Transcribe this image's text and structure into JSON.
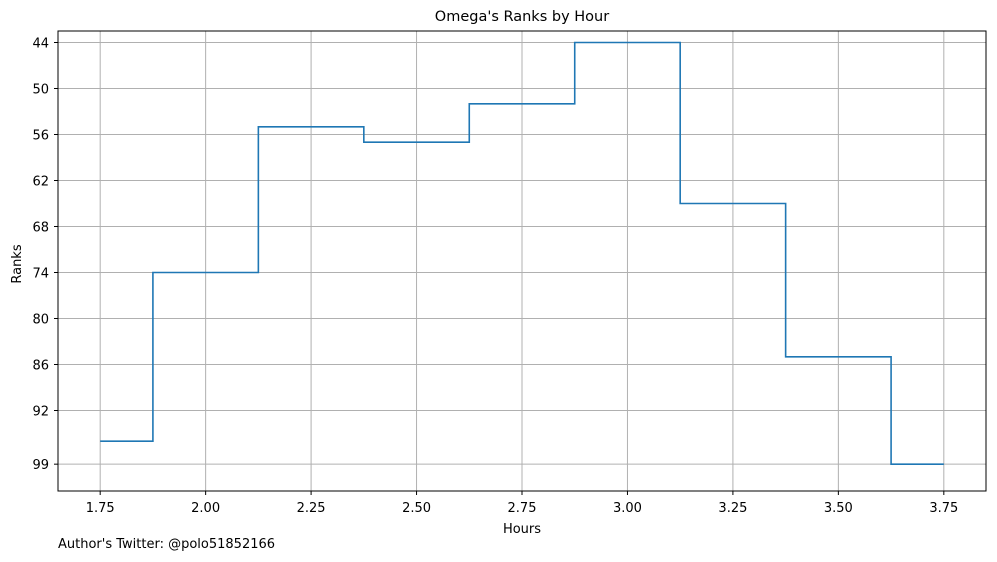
{
  "chart_data": {
    "type": "line",
    "drawstyle": "steps-mid",
    "title": "Omega's Ranks by Hour",
    "xlabel": "Hours",
    "ylabel": "Ranks",
    "x": [
      1.75,
      2.0,
      2.25,
      2.5,
      2.75,
      3.0,
      3.25,
      3.5,
      3.75
    ],
    "series": [
      {
        "values": [
          96,
          74,
          55,
          57,
          52,
          44,
          65,
          85,
          99
        ]
      }
    ],
    "xticks": [
      "1.75",
      "2.00",
      "2.25",
      "2.50",
      "2.75",
      "3.00",
      "3.25",
      "3.50",
      "3.75"
    ],
    "yticks": [
      "44",
      "50",
      "56",
      "62",
      "68",
      "74",
      "80",
      "86",
      "92",
      "99"
    ],
    "xlim": [
      1.65,
      3.85
    ],
    "ylim": [
      42.5,
      102.5
    ],
    "y_inverted": true,
    "grid": true,
    "line_color": "#1f77b4"
  },
  "footer": "Author's Twitter: @polo51852166"
}
